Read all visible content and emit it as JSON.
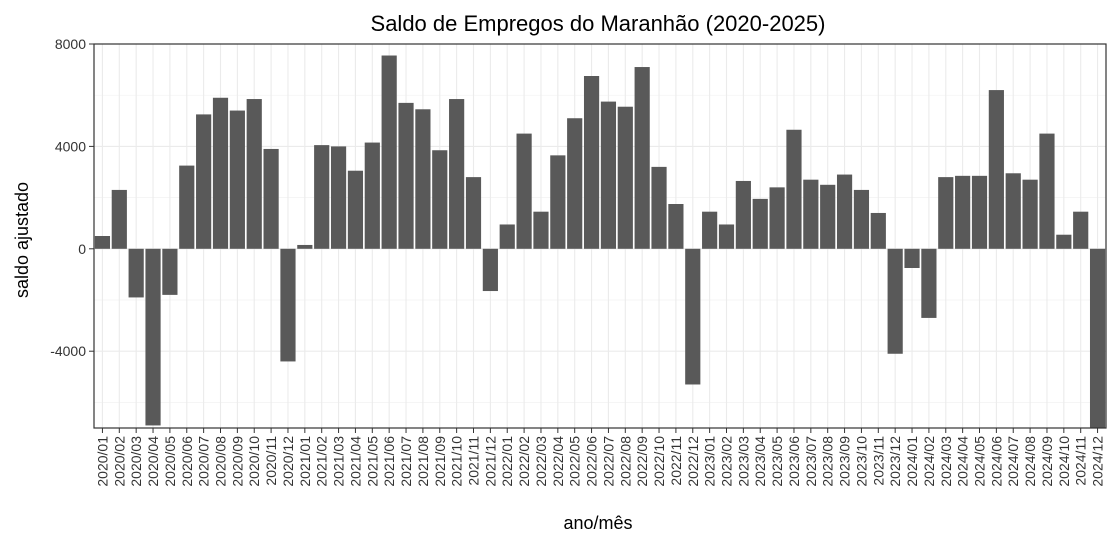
{
  "chart_data": {
    "type": "bar",
    "title": "Saldo de Empregos do Maranhão (2020-2025)",
    "xlabel": "ano/mês",
    "ylabel": "saldo ajustado",
    "ylim": [
      -7000,
      8000
    ],
    "yticks": [
      -4000,
      0,
      4000,
      8000
    ],
    "grid": true,
    "bar_color": "#595959",
    "categories": [
      "2020/01",
      "2020/02",
      "2020/03",
      "2020/04",
      "2020/05",
      "2020/06",
      "2020/07",
      "2020/08",
      "2020/09",
      "2020/10",
      "2020/11",
      "2020/12",
      "2021/01",
      "2021/02",
      "2021/03",
      "2021/04",
      "2021/05",
      "2021/06",
      "2021/07",
      "2021/08",
      "2021/09",
      "2021/10",
      "2021/11",
      "2021/12",
      "2022/01",
      "2022/02",
      "2022/03",
      "2022/04",
      "2022/05",
      "2022/06",
      "2022/07",
      "2022/08",
      "2022/09",
      "2022/10",
      "2022/11",
      "2022/12",
      "2023/01",
      "2023/02",
      "2023/03",
      "2023/04",
      "2023/05",
      "2023/06",
      "2023/07",
      "2023/08",
      "2023/09",
      "2023/10",
      "2023/11",
      "2023/12",
      "2024/01",
      "2024/02",
      "2024/03",
      "2024/04",
      "2024/05",
      "2024/06",
      "2024/07",
      "2024/08",
      "2024/09",
      "2024/10",
      "2024/11",
      "2024/12"
    ],
    "values": [
      500,
      2300,
      -1900,
      -6900,
      -1800,
      3250,
      5250,
      5900,
      5400,
      5850,
      3900,
      -4400,
      150,
      4050,
      4000,
      3050,
      4150,
      7550,
      5700,
      5450,
      3850,
      5850,
      2800,
      -1650,
      950,
      4500,
      1450,
      3650,
      5100,
      6750,
      5750,
      5550,
      7100,
      3200,
      1750,
      -5300,
      1450,
      950,
      2650,
      1950,
      2400,
      4650,
      2700,
      2500,
      2900,
      2300,
      1400,
      -4100,
      -750,
      -2700,
      2800,
      2850,
      2850,
      6200,
      2950,
      2700,
      4500,
      550,
      1450,
      -7000
    ]
  }
}
